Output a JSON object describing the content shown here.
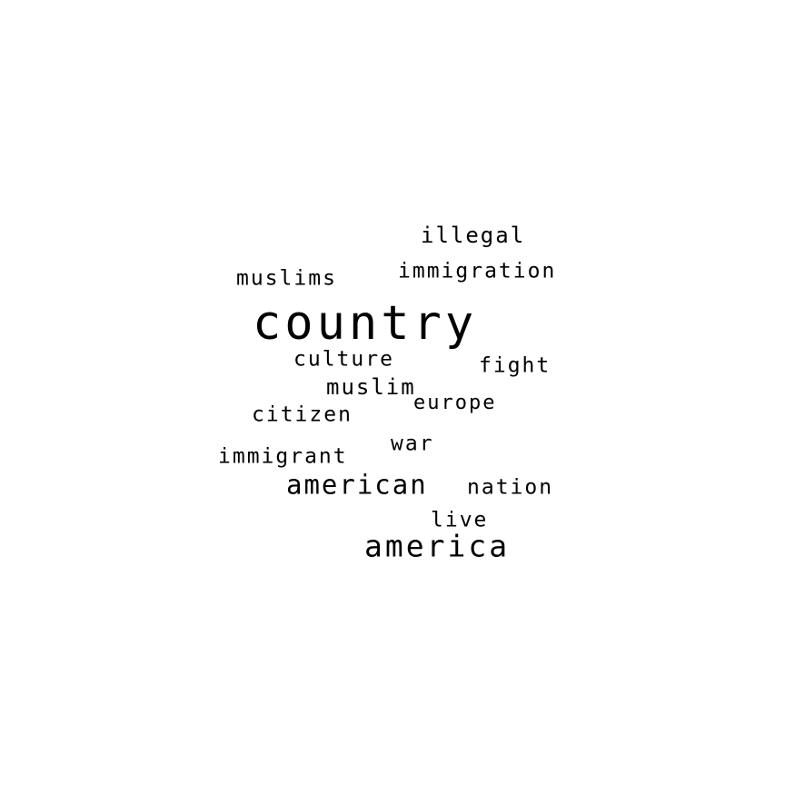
{
  "text_color": "#000000",
  "background_color": "#ffffff",
  "words": [
    {
      "name": "country",
      "text": "country"
    },
    {
      "name": "america",
      "text": "america"
    },
    {
      "name": "american",
      "text": "american"
    },
    {
      "name": "immigration",
      "text": "immigration"
    },
    {
      "name": "illegal",
      "text": "illegal"
    },
    {
      "name": "muslims",
      "text": "muslims"
    },
    {
      "name": "culture",
      "text": "culture"
    },
    {
      "name": "fight",
      "text": "fight"
    },
    {
      "name": "muslim",
      "text": "muslim"
    },
    {
      "name": "europe",
      "text": "europe"
    },
    {
      "name": "citizen",
      "text": "citizen"
    },
    {
      "name": "war",
      "text": "war"
    },
    {
      "name": "immigrant",
      "text": "immigrant"
    },
    {
      "name": "nation",
      "text": "nation"
    },
    {
      "name": "live",
      "text": "live"
    }
  ]
}
